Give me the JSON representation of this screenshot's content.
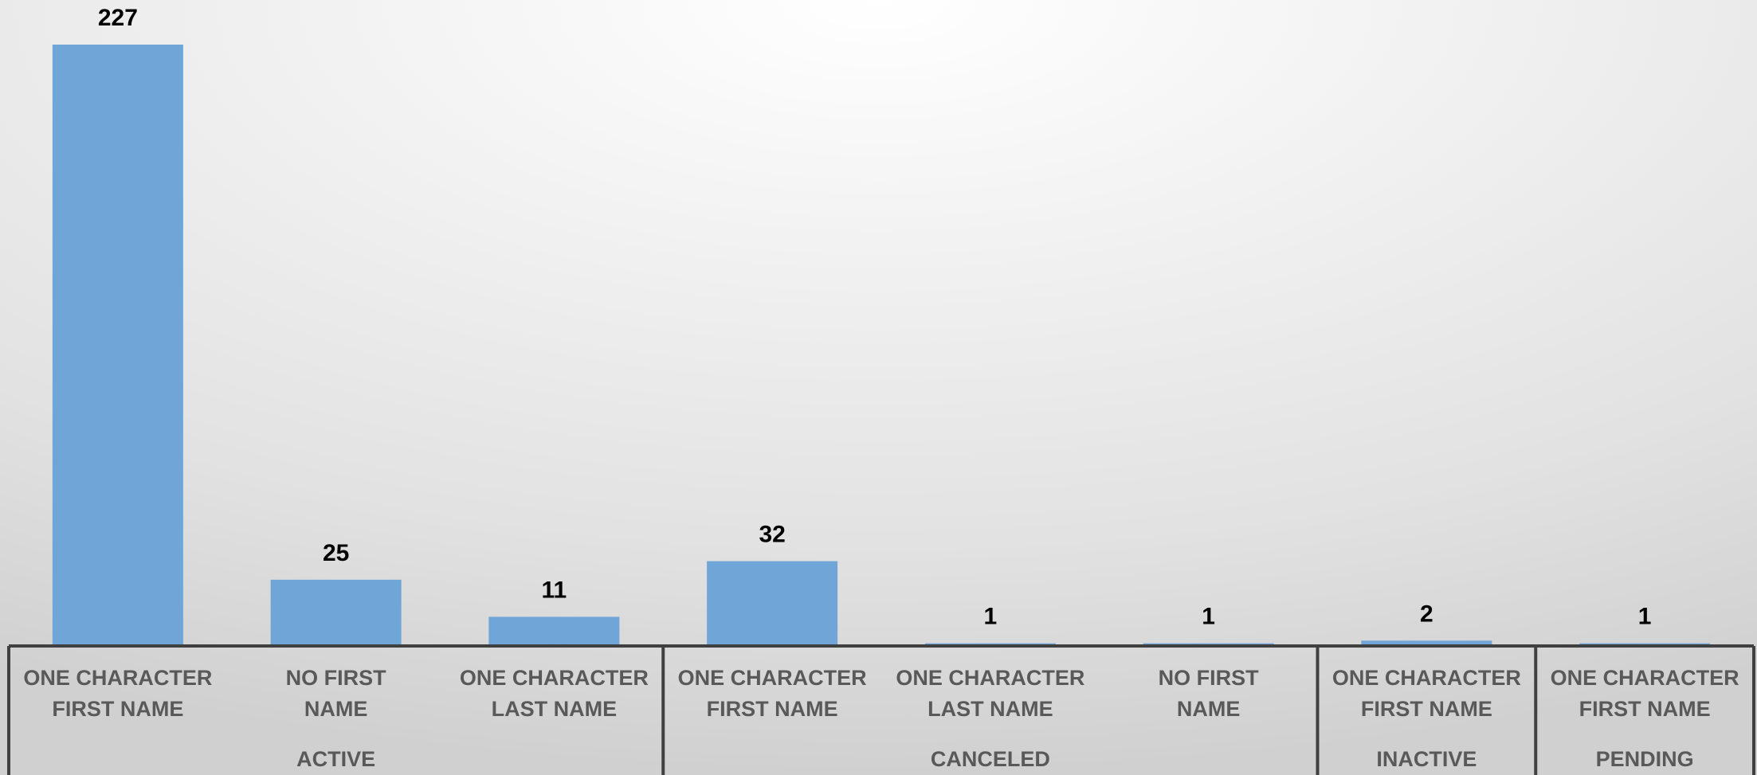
{
  "chart_data": {
    "type": "bar",
    "color": "#6fa5d7",
    "groups": [
      {
        "name": "ACTIVE",
        "categories": [
          "ONE CHARACTER FIRST NAME",
          "NO FIRST NAME",
          "ONE CHARACTER LAST NAME"
        ],
        "values": [
          227,
          25,
          11
        ]
      },
      {
        "name": "CANCELED",
        "categories": [
          "ONE CHARACTER FIRST NAME",
          "ONE CHARACTER LAST NAME",
          "NO FIRST NAME"
        ],
        "values": [
          32,
          1,
          1
        ]
      },
      {
        "name": "INACTIVE",
        "categories": [
          "ONE CHARACTER FIRST NAME"
        ],
        "values": [
          2
        ]
      },
      {
        "name": "PENDING",
        "categories": [
          "ONE CHARACTER FIRST NAME"
        ],
        "values": [
          1
        ]
      }
    ]
  }
}
